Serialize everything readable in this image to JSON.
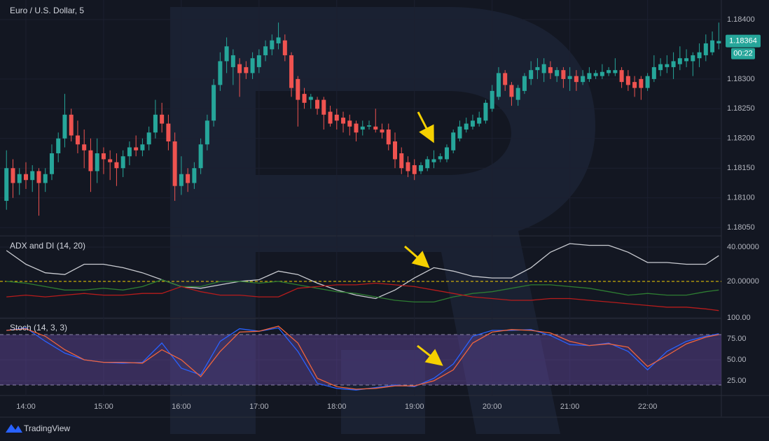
{
  "brand": "TradingView",
  "chart_data": [
    {
      "type": "candlestick",
      "title": "Euro / U.S. Dollar, 5",
      "x": [
        825,
        830,
        835,
        840,
        845,
        850,
        855,
        860,
        865,
        870,
        875,
        880,
        885,
        890,
        895,
        900,
        905,
        910,
        915,
        920,
        925,
        930,
        935,
        940,
        945,
        950,
        955,
        960,
        965,
        970,
        975,
        980,
        985,
        990,
        995,
        1000,
        1005,
        1010,
        1015,
        1020,
        1025,
        1030,
        1035,
        1040,
        1045,
        1050,
        1055,
        1060,
        1065,
        1070,
        1075,
        1080,
        1085,
        1090,
        1095,
        1100,
        1105,
        1110,
        1115,
        1120,
        1125,
        1130,
        1135,
        1140,
        1145,
        1150,
        1155,
        1160,
        1165,
        1170,
        1175,
        1180,
        1185,
        1190,
        1195,
        1200,
        1205,
        1210,
        1215,
        1220,
        1225,
        1230,
        1235,
        1240,
        1245,
        1250,
        1255,
        1260,
        1265,
        1270,
        1275,
        1280,
        1285,
        1290,
        1295,
        1300,
        1305,
        1310,
        1315,
        1320,
        1325,
        1330,
        1335,
        1340,
        1345,
        1350,
        1355,
        1360,
        1365,
        1370,
        1375
      ],
      "ohlc": [
        [
          1.18095,
          1.1818,
          1.1808,
          1.1815
        ],
        [
          1.1815,
          1.18165,
          1.181,
          1.18125
        ],
        [
          1.18125,
          1.1815,
          1.18105,
          1.1814
        ],
        [
          1.1814,
          1.1816,
          1.18115,
          1.1813
        ],
        [
          1.1813,
          1.18155,
          1.1811,
          1.18145
        ],
        [
          1.18145,
          1.1815,
          1.1807,
          1.18125
        ],
        [
          1.18125,
          1.1815,
          1.1811,
          1.1814
        ],
        [
          1.1814,
          1.1819,
          1.1813,
          1.18175
        ],
        [
          1.18175,
          1.1821,
          1.1816,
          1.182
        ],
        [
          1.182,
          1.18275,
          1.18185,
          1.1824
        ],
        [
          1.1824,
          1.1825,
          1.18195,
          1.18205
        ],
        [
          1.18205,
          1.1823,
          1.18175,
          1.1819
        ],
        [
          1.1819,
          1.18215,
          1.1815,
          1.1818
        ],
        [
          1.1818,
          1.182,
          1.1811,
          1.18145
        ],
        [
          1.18145,
          1.182,
          1.18125,
          1.18175
        ],
        [
          1.18175,
          1.18185,
          1.1814,
          1.18165
        ],
        [
          1.18165,
          1.1818,
          1.1813,
          1.1816
        ],
        [
          1.1816,
          1.18175,
          1.1812,
          1.1815
        ],
        [
          1.1815,
          1.1818,
          1.18135,
          1.1817
        ],
        [
          1.1817,
          1.18195,
          1.18155,
          1.18185
        ],
        [
          1.18185,
          1.18205,
          1.1817,
          1.1818
        ],
        [
          1.1818,
          1.182,
          1.1817,
          1.1819
        ],
        [
          1.1819,
          1.1822,
          1.1818,
          1.1821
        ],
        [
          1.1821,
          1.18265,
          1.182,
          1.1824
        ],
        [
          1.1824,
          1.1826,
          1.1821,
          1.18225
        ],
        [
          1.18225,
          1.1824,
          1.1818,
          1.18195
        ],
        [
          1.18195,
          1.1821,
          1.18095,
          1.1812
        ],
        [
          1.1812,
          1.1817,
          1.18105,
          1.1814
        ],
        [
          1.1814,
          1.1815,
          1.1811,
          1.18125
        ],
        [
          1.18125,
          1.1816,
          1.18115,
          1.1815
        ],
        [
          1.1815,
          1.182,
          1.1814,
          1.1819
        ],
        [
          1.1819,
          1.1824,
          1.1818,
          1.1823
        ],
        [
          1.1823,
          1.183,
          1.1822,
          1.1829
        ],
        [
          1.1829,
          1.18345,
          1.1828,
          1.1833
        ],
        [
          1.1833,
          1.1837,
          1.1831,
          1.18355
        ],
        [
          1.1832,
          1.1835,
          1.1829,
          1.1834
        ],
        [
          1.18325,
          1.18335,
          1.1827,
          1.1831
        ],
        [
          1.1832,
          1.1833,
          1.183,
          1.1831
        ],
        [
          1.1831,
          1.18345,
          1.183,
          1.18335
        ],
        [
          1.1832,
          1.1835,
          1.1831,
          1.1834
        ],
        [
          1.1834,
          1.18365,
          1.1833,
          1.18355
        ],
        [
          1.1835,
          1.18375,
          1.1834,
          1.18365
        ],
        [
          1.1836,
          1.18395,
          1.1835,
          1.1837
        ],
        [
          1.18365,
          1.18375,
          1.1833,
          1.1834
        ],
        [
          1.1834,
          1.18345,
          1.1827,
          1.18285
        ],
        [
          1.183,
          1.18305,
          1.1822,
          1.18265
        ],
        [
          1.18275,
          1.18285,
          1.1825,
          1.1826
        ],
        [
          1.18265,
          1.18275,
          1.1825,
          1.1827
        ],
        [
          1.18265,
          1.1827,
          1.1824,
          1.1825
        ],
        [
          1.18265,
          1.1827,
          1.18215,
          1.1824
        ],
        [
          1.18245,
          1.18255,
          1.1822,
          1.18225
        ],
        [
          1.1824,
          1.1825,
          1.18215,
          1.1823
        ],
        [
          1.18235,
          1.18245,
          1.1821,
          1.18225
        ],
        [
          1.1823,
          1.1824,
          1.18205,
          1.1822
        ],
        [
          1.18225,
          1.1823,
          1.18195,
          1.1821
        ],
        [
          1.18215,
          1.1823,
          1.18205,
          1.1822
        ],
        [
          1.1822,
          1.1823,
          1.18215,
          1.18222
        ],
        [
          1.1822,
          1.1825,
          1.1821,
          1.18215
        ],
        [
          1.18215,
          1.18225,
          1.182,
          1.1821
        ],
        [
          1.18215,
          1.18225,
          1.1818,
          1.1819
        ],
        [
          1.18195,
          1.1821,
          1.1815,
          1.18165
        ],
        [
          1.18175,
          1.18185,
          1.1814,
          1.1815
        ],
        [
          1.1816,
          1.1817,
          1.18135,
          1.18145
        ],
        [
          1.18155,
          1.18165,
          1.1813,
          1.1814
        ],
        [
          1.18145,
          1.1816,
          1.1814,
          1.18155
        ],
        [
          1.1815,
          1.1817,
          1.18145,
          1.18165
        ],
        [
          1.1816,
          1.1818,
          1.1815,
          1.18165
        ],
        [
          1.18165,
          1.18175,
          1.1816,
          1.1817
        ],
        [
          1.18165,
          1.1819,
          1.1816,
          1.18185
        ],
        [
          1.1818,
          1.18215,
          1.18175,
          1.1821
        ],
        [
          1.182,
          1.1823,
          1.18195,
          1.1822
        ],
        [
          1.18215,
          1.18235,
          1.1821,
          1.18225
        ],
        [
          1.1822,
          1.1824,
          1.18215,
          1.1823
        ],
        [
          1.18225,
          1.18245,
          1.1822,
          1.18235
        ],
        [
          1.1823,
          1.18265,
          1.18225,
          1.1826
        ],
        [
          1.1825,
          1.1829,
          1.18245,
          1.1828
        ],
        [
          1.1827,
          1.1832,
          1.18265,
          1.1831
        ],
        [
          1.1831,
          1.18315,
          1.1828,
          1.1829
        ],
        [
          1.1829,
          1.18295,
          1.18255,
          1.1827
        ],
        [
          1.18265,
          1.1829,
          1.18255,
          1.18285
        ],
        [
          1.1828,
          1.1831,
          1.18275,
          1.18305
        ],
        [
          1.183,
          1.1833,
          1.1829,
          1.18315
        ],
        [
          1.18315,
          1.18335,
          1.183,
          1.1832
        ],
        [
          1.1831,
          1.18335,
          1.18295,
          1.18325
        ],
        [
          1.1832,
          1.1833,
          1.183,
          1.1831
        ],
        [
          1.18305,
          1.1832,
          1.18295,
          1.18315
        ],
        [
          1.18315,
          1.1832,
          1.18285,
          1.183
        ],
        [
          1.183,
          1.1832,
          1.1828,
          1.18305
        ],
        [
          1.18305,
          1.18315,
          1.1828,
          1.18295
        ],
        [
          1.18295,
          1.18315,
          1.1829,
          1.18305
        ],
        [
          1.183,
          1.1832,
          1.18295,
          1.1831
        ],
        [
          1.18305,
          1.18315,
          1.183,
          1.1831
        ],
        [
          1.18305,
          1.18325,
          1.183,
          1.18312
        ],
        [
          1.1831,
          1.1832,
          1.18305,
          1.18315
        ],
        [
          1.1831,
          1.18335,
          1.18305,
          1.18315
        ],
        [
          1.18315,
          1.1832,
          1.18285,
          1.18295
        ],
        [
          1.18305,
          1.18315,
          1.1828,
          1.1829
        ],
        [
          1.18295,
          1.18305,
          1.1827,
          1.18285
        ],
        [
          1.183,
          1.18305,
          1.18265,
          1.18285
        ],
        [
          1.18285,
          1.1831,
          1.1828,
          1.18305
        ],
        [
          1.183,
          1.1834,
          1.18295,
          1.1832
        ],
        [
          1.18315,
          1.18335,
          1.18305,
          1.18325
        ],
        [
          1.1832,
          1.1834,
          1.1831,
          1.18325
        ],
        [
          1.1832,
          1.18345,
          1.183,
          1.1833
        ],
        [
          1.18325,
          1.18355,
          1.18315,
          1.18335
        ],
        [
          1.1833,
          1.1835,
          1.1832,
          1.18335
        ],
        [
          1.1833,
          1.18345,
          1.18305,
          1.1834
        ],
        [
          1.18335,
          1.1836,
          1.1832,
          1.18345
        ],
        [
          1.1834,
          1.18375,
          1.1833,
          1.1836
        ],
        [
          1.18345,
          1.1838,
          1.1834,
          1.18365
        ],
        [
          1.1836,
          1.18395,
          1.1835,
          1.18364
        ]
      ],
      "up_color": "#26a69a",
      "down_color": "#ef5350",
      "xlim": [
        820,
        1377
      ],
      "xticks": [
        {
          "value": 840,
          "label": "14:00"
        },
        {
          "value": 900,
          "label": "15:00"
        },
        {
          "value": 960,
          "label": "16:00"
        },
        {
          "value": 1020,
          "label": "17:00"
        },
        {
          "value": 1080,
          "label": "18:00"
        },
        {
          "value": 1140,
          "label": "19:00"
        },
        {
          "value": 1200,
          "label": "20:00"
        },
        {
          "value": 1260,
          "label": "21:00"
        },
        {
          "value": 1320,
          "label": "22:00"
        }
      ],
      "ylim": [
        1.18036,
        1.18433
      ],
      "yticks": [
        {
          "value": 1.1805,
          "label": "1.18050"
        },
        {
          "value": 1.181,
          "label": "1.18100"
        },
        {
          "value": 1.1815,
          "label": "1.18150"
        },
        {
          "value": 1.182,
          "label": "1.18200"
        },
        {
          "value": 1.1825,
          "label": "1.18250"
        },
        {
          "value": 1.183,
          "label": "1.18300"
        },
        {
          "value": 1.184,
          "label": "1.18400"
        }
      ],
      "grid": true,
      "last_price": {
        "value": 1.18364,
        "label": "1.18364"
      },
      "countdown": "00:22"
    },
    {
      "type": "line",
      "title": "ADX and DI (14, 20)",
      "x": [
        825,
        840,
        855,
        870,
        885,
        900,
        915,
        930,
        945,
        960,
        975,
        990,
        1005,
        1020,
        1035,
        1050,
        1065,
        1080,
        1095,
        1110,
        1125,
        1140,
        1155,
        1170,
        1185,
        1200,
        1215,
        1230,
        1245,
        1260,
        1275,
        1290,
        1305,
        1320,
        1335,
        1350,
        1365,
        1375
      ],
      "series": [
        {
          "color": "#c9cbd1",
          "values": [
            38,
            30,
            25,
            24,
            30,
            30,
            28,
            25,
            21,
            17,
            16,
            18,
            20,
            21,
            26,
            24,
            19,
            15,
            12,
            10,
            15,
            22,
            28,
            26,
            23,
            22,
            22,
            28,
            37,
            42,
            41,
            41,
            37,
            31,
            31,
            30,
            30,
            35
          ]
        },
        {
          "color": "#2e7d32",
          "values": [
            20,
            19,
            17,
            15,
            15,
            16,
            15,
            17,
            21,
            17,
            17,
            20,
            20,
            19,
            20,
            18,
            16,
            14,
            13,
            11,
            9,
            8,
            8,
            11,
            13,
            14,
            16,
            18,
            18,
            17,
            16,
            14,
            12,
            13,
            12,
            12,
            14,
            15
          ]
        },
        {
          "color": "#b71c1c",
          "values": [
            11,
            12,
            11,
            12,
            13,
            12,
            12,
            13,
            13,
            17,
            14,
            12,
            12,
            11,
            11,
            16,
            17,
            18,
            18,
            19,
            18,
            17,
            15,
            13,
            11,
            10,
            9,
            9,
            10,
            10,
            9,
            8,
            7,
            6,
            5,
            5,
            4,
            3
          ]
        }
      ],
      "level": 20,
      "level_color": "#f5d000",
      "ylim": [
        -1.6,
        46.5
      ],
      "yticks": [
        {
          "value": 20,
          "label": "20.00000"
        },
        {
          "value": 40,
          "label": "40.00000"
        }
      ],
      "grid": true
    },
    {
      "type": "line",
      "title": "Stoch (14, 3, 3)",
      "x": [
        825,
        840,
        855,
        870,
        885,
        900,
        915,
        930,
        945,
        960,
        975,
        990,
        1005,
        1020,
        1035,
        1050,
        1065,
        1080,
        1095,
        1110,
        1125,
        1140,
        1155,
        1170,
        1185,
        1200,
        1215,
        1230,
        1245,
        1260,
        1275,
        1290,
        1305,
        1320,
        1335,
        1350,
        1365,
        1375
      ],
      "series": [
        {
          "color": "#2962ff",
          "values": [
            85,
            88,
            72,
            58,
            50,
            47,
            46,
            47,
            70,
            40,
            32,
            72,
            87,
            84,
            88,
            60,
            22,
            16,
            14,
            17,
            20,
            18,
            28,
            45,
            78,
            85,
            85,
            86,
            79,
            68,
            67,
            70,
            60,
            38,
            60,
            72,
            78,
            81
          ]
        },
        {
          "color": "#f0643c",
          "values": [
            85,
            87,
            78,
            62,
            50,
            47,
            47,
            46,
            62,
            50,
            30,
            60,
            83,
            84,
            90,
            70,
            28,
            18,
            15,
            16,
            19,
            19,
            25,
            38,
            70,
            83,
            86,
            85,
            82,
            72,
            67,
            69,
            65,
            42,
            55,
            69,
            77,
            80
          ]
        }
      ],
      "band": [
        20,
        80
      ],
      "band_color": "#7e57c2",
      "ylim": [
        7.5,
        100
      ],
      "yticks": [
        {
          "value": 25,
          "label": "25.00"
        },
        {
          "value": 50,
          "label": "50.00"
        },
        {
          "value": 75,
          "label": "75.00"
        },
        {
          "value": 100,
          "label": "100.00"
        }
      ],
      "grid": true
    }
  ]
}
